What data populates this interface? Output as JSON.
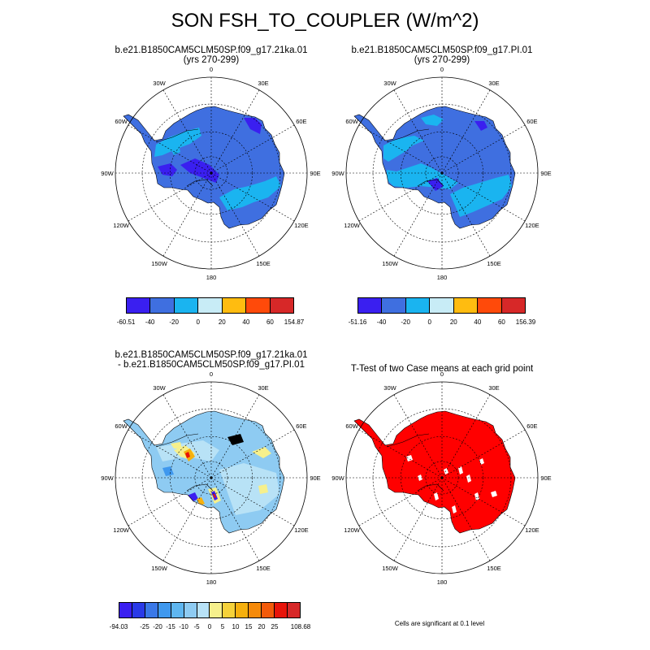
{
  "title": "SON FSH_TO_COUPLER (W/m^2)",
  "lon_labels": [
    "0",
    "30E",
    "60E",
    "90E",
    "120E",
    "150E",
    "180",
    "150W",
    "120W",
    "90W",
    "60W",
    "30W"
  ],
  "panels": [
    {
      "id": "tl",
      "title_lines": [
        "b.e21.B1850CAM5CLM50SP.f09_g17.21ka.01",
        "(yrs 270-299)"
      ]
    },
    {
      "id": "tr",
      "title_lines": [
        "b.e21.B1850CAM5CLM50SP.f09_g17.PI.01",
        "(yrs 270-299)"
      ]
    },
    {
      "id": "bl",
      "title_lines": [
        "b.e21.B1850CAM5CLM50SP.f09_g17.21ka.01",
        "- b.e21.B1850CAM5CLM50SP.f09_g17.PI.01"
      ]
    },
    {
      "id": "br",
      "title_lines": [
        "T-Test of two Case means at each grid point"
      ]
    }
  ],
  "colorbars": {
    "tl": {
      "colors": [
        "#3a1ff0",
        "#3f6fe0",
        "#1ab4f0",
        "#c8ecf6",
        "#ffbc10",
        "#ff4a0a",
        "#d72828"
      ],
      "labels": [
        "-60.51",
        "-40",
        "-20",
        "0",
        "20",
        "40",
        "60",
        "154.87"
      ]
    },
    "tr": {
      "colors": [
        "#3a1ff0",
        "#3f6fe0",
        "#1ab4f0",
        "#c8ecf6",
        "#ffbc10",
        "#ff4a0a",
        "#d72828"
      ],
      "labels": [
        "-51.16",
        "-40",
        "-20",
        "0",
        "20",
        "40",
        "60",
        "156.39"
      ]
    },
    "bl": {
      "colors": [
        "#3a1ff0",
        "#2a3ae8",
        "#3a78e8",
        "#3f98ee",
        "#5fb6f0",
        "#8ecbf2",
        "#b8e2f6",
        "#f6f08c",
        "#f6d23a",
        "#f6b00e",
        "#f68a0a",
        "#f25a0a",
        "#e8140a",
        "#d72828"
      ],
      "labels": [
        "-94.03",
        "",
        "-25",
        "-20",
        "-15",
        "-10",
        "-5",
        "0",
        "5",
        "10",
        "15",
        "20",
        "25",
        "",
        "108.68"
      ]
    }
  },
  "note": "Cells are significant at 0.1 level",
  "map_fill": {
    "tl": {
      "base": "#3f6fe0",
      "accents": [
        "#1ab4f0",
        "#3a1ff0"
      ]
    },
    "tr": {
      "base": "#3f6fe0",
      "accents": [
        "#1ab4f0",
        "#3a1ff0"
      ]
    },
    "bl": {
      "base": "#8ecbf2",
      "accents": [
        "#b8e2f6",
        "#f6f08c",
        "#f6b00e",
        "#e8140a",
        "#3a1ff0",
        "#3f98ee"
      ]
    },
    "br": {
      "base": "#ff0000",
      "accents": [
        "#ffffff"
      ]
    }
  }
}
